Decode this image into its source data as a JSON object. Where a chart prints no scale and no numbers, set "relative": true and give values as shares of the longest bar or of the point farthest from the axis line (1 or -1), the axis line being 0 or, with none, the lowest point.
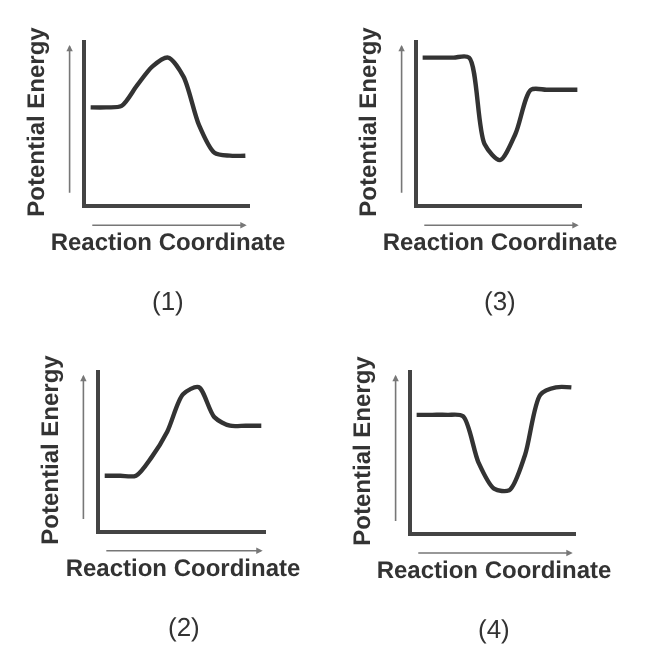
{
  "chart_data": [
    {
      "type": "line",
      "relative": true,
      "categories": [
        null,
        null,
        null,
        null,
        null,
        null,
        null,
        null,
        null,
        null,
        null
      ],
      "xlabel": "Reaction Coordinate",
      "ylabel": "Potential Energy",
      "annotations": [
        "(1)"
      ],
      "tick_labels": false,
      "series": [
        {
          "color": "#333333",
          "values": [
            0.66,
            0.66,
            0.67,
            0.81,
            0.94,
            1,
            0.87,
            0.54,
            0.35,
            0.33,
            0.33
          ]
        }
      ]
    },
    {
      "type": "line",
      "relative": true,
      "categories": [
        null,
        null,
        null,
        null,
        null,
        null,
        null,
        null,
        null,
        null,
        null
      ],
      "xlabel": "Reaction Coordinate",
      "ylabel": "Potential Energy",
      "annotations": [
        "(3)"
      ],
      "tick_labels": false,
      "series": [
        {
          "color": "#333333",
          "values": [
            1,
            1,
            1,
            1,
            0.41,
            0.3,
            0.48,
            0.78,
            0.78,
            0.78,
            0.78
          ]
        }
      ]
    },
    {
      "type": "line",
      "relative": true,
      "categories": [
        null,
        null,
        null,
        null,
        null,
        null,
        null,
        null,
        null,
        null,
        null
      ],
      "xlabel": "Reaction Coordinate",
      "ylabel": "Potential Energy",
      "annotations": [
        "(2)"
      ],
      "tick_labels": false,
      "series": [
        {
          "color": "#333333",
          "values": [
            0.38,
            0.38,
            0.38,
            0.51,
            0.69,
            0.95,
            1,
            0.79,
            0.73,
            0.73,
            0.73
          ]
        }
      ]
    },
    {
      "type": "line",
      "relative": true,
      "categories": [
        null,
        null,
        null,
        null,
        null,
        null,
        null,
        null,
        null,
        null,
        null
      ],
      "xlabel": "Reaction Coordinate",
      "ylabel": "Potential Energy",
      "annotations": [
        "(4)"
      ],
      "tick_labels": false,
      "series": [
        {
          "color": "#333333",
          "values": [
            0.81,
            0.81,
            0.81,
            0.8,
            0.48,
            0.3,
            0.29,
            0.53,
            0.95,
            1,
            1
          ]
        }
      ]
    }
  ]
}
